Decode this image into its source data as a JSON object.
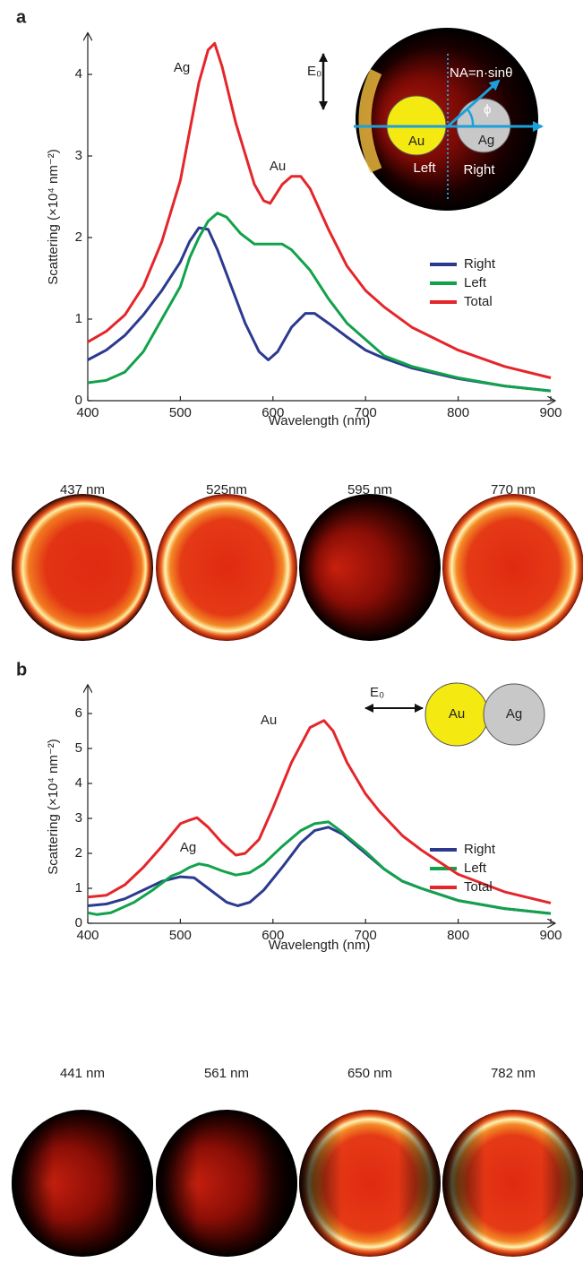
{
  "chart_data": [
    {
      "type": "line",
      "panel_label": "a",
      "xlabel": "Wavelength (nm)",
      "ylabel": "Scattering (×10⁴ nm⁻²)",
      "xlim": [
        400,
        900
      ],
      "ylim": [
        0,
        4.5
      ],
      "xticks": [
        400,
        500,
        600,
        700,
        800,
        900
      ],
      "yticks": [
        0,
        1,
        2,
        3,
        4
      ],
      "grid": false,
      "legend": "right",
      "annotations": [
        "Ag",
        "Au"
      ],
      "inset_labels": [
        "E₀",
        "NA=n·sinθ",
        "ϕ",
        "Au",
        "Ag",
        "Left",
        "Right"
      ],
      "image_captions": [
        "437 nm",
        "525nm",
        "595 nm",
        "770 nm"
      ],
      "series": [
        {
          "name": "Right",
          "color": "#2b3a8f",
          "x": [
            400,
            420,
            440,
            460,
            480,
            500,
            510,
            520,
            530,
            540,
            555,
            570,
            585,
            595,
            605,
            620,
            635,
            645,
            660,
            680,
            700,
            720,
            750,
            800,
            850,
            900
          ],
          "values": [
            0.5,
            0.62,
            0.8,
            1.05,
            1.35,
            1.7,
            1.95,
            2.12,
            2.1,
            1.85,
            1.4,
            0.95,
            0.6,
            0.5,
            0.6,
            0.9,
            1.07,
            1.07,
            0.95,
            0.78,
            0.62,
            0.52,
            0.4,
            0.27,
            0.18,
            0.12
          ]
        },
        {
          "name": "Left",
          "color": "#12a24b",
          "x": [
            400,
            420,
            440,
            460,
            480,
            500,
            510,
            520,
            530,
            540,
            550,
            565,
            580,
            600,
            610,
            620,
            640,
            660,
            680,
            700,
            720,
            750,
            800,
            850,
            900
          ],
          "values": [
            0.22,
            0.25,
            0.35,
            0.6,
            1.0,
            1.4,
            1.75,
            2.0,
            2.2,
            2.3,
            2.25,
            2.05,
            1.92,
            1.92,
            1.92,
            1.85,
            1.6,
            1.25,
            0.95,
            0.75,
            0.55,
            0.42,
            0.28,
            0.18,
            0.12
          ]
        },
        {
          "name": "Total",
          "color": "#e4262b",
          "x": [
            400,
            420,
            440,
            460,
            480,
            500,
            510,
            520,
            530,
            537,
            545,
            560,
            580,
            590,
            597,
            610,
            620,
            630,
            640,
            660,
            680,
            700,
            720,
            750,
            800,
            850,
            900
          ],
          "values": [
            0.72,
            0.85,
            1.05,
            1.4,
            1.95,
            2.7,
            3.3,
            3.9,
            4.3,
            4.38,
            4.1,
            3.4,
            2.65,
            2.45,
            2.42,
            2.65,
            2.75,
            2.75,
            2.6,
            2.1,
            1.65,
            1.35,
            1.15,
            0.9,
            0.62,
            0.42,
            0.28
          ]
        }
      ]
    },
    {
      "type": "line",
      "panel_label": "b",
      "xlabel": "Wavelength (nm)",
      "ylabel": "Scattering (×10⁴ nm⁻²)",
      "xlim": [
        400,
        900
      ],
      "ylim": [
        0,
        6.8
      ],
      "xticks": [
        400,
        500,
        600,
        700,
        800,
        900
      ],
      "yticks": [
        0,
        1,
        2,
        3,
        4,
        5,
        6
      ],
      "grid": false,
      "legend": "right",
      "annotations": [
        "Au",
        "Ag"
      ],
      "inset_labels": [
        "E₀",
        "Au",
        "Ag"
      ],
      "image_captions": [
        "441 nm",
        "561 nm",
        "650 nm",
        "782 nm"
      ],
      "series": [
        {
          "name": "Right",
          "color": "#2b3a8f",
          "x": [
            400,
            420,
            440,
            460,
            480,
            500,
            515,
            530,
            550,
            562,
            575,
            590,
            610,
            630,
            645,
            660,
            675,
            700,
            720,
            740,
            760,
            800,
            850,
            900
          ],
          "values": [
            0.5,
            0.55,
            0.7,
            0.95,
            1.2,
            1.33,
            1.3,
            1.0,
            0.6,
            0.5,
            0.6,
            0.95,
            1.6,
            2.3,
            2.65,
            2.75,
            2.55,
            2.0,
            1.55,
            1.2,
            1.0,
            0.65,
            0.42,
            0.28
          ]
        },
        {
          "name": "Left",
          "color": "#12a24b",
          "x": [
            400,
            410,
            425,
            450,
            470,
            490,
            500,
            510,
            520,
            530,
            545,
            560,
            575,
            590,
            610,
            630,
            645,
            660,
            675,
            700,
            720,
            740,
            760,
            800,
            850,
            900
          ],
          "values": [
            0.3,
            0.25,
            0.3,
            0.6,
            0.95,
            1.35,
            1.45,
            1.6,
            1.7,
            1.65,
            1.5,
            1.38,
            1.45,
            1.7,
            2.2,
            2.65,
            2.85,
            2.9,
            2.6,
            2.05,
            1.55,
            1.2,
            1.0,
            0.65,
            0.42,
            0.28
          ]
        },
        {
          "name": "Total",
          "color": "#e4262b",
          "x": [
            400,
            420,
            440,
            460,
            480,
            500,
            510,
            518,
            530,
            545,
            560,
            570,
            585,
            600,
            620,
            640,
            655,
            665,
            680,
            700,
            715,
            740,
            760,
            800,
            850,
            900
          ],
          "values": [
            0.75,
            0.8,
            1.1,
            1.6,
            2.2,
            2.85,
            2.95,
            3.02,
            2.75,
            2.3,
            1.95,
            2.0,
            2.4,
            3.3,
            4.6,
            5.6,
            5.8,
            5.5,
            4.6,
            3.7,
            3.2,
            2.5,
            2.1,
            1.4,
            0.9,
            0.58
          ]
        }
      ]
    }
  ]
}
